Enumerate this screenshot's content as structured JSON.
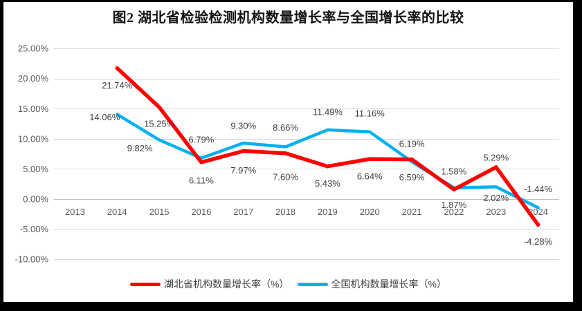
{
  "colors": {
    "frame": "#000000",
    "canvas_background": "#FFFFFF",
    "grid": "#D9D9D9",
    "zero_line": "#BFBFBF",
    "axis_text": "#595959",
    "data_label_text": "#3F3F3F",
    "title_text": "#141414",
    "hubei_red": "#FF0000",
    "national_blue": "#00B0F0"
  },
  "chart_data": {
    "type": "line",
    "title": "图2 湖北省检验检测机构数量增长率与全国增长率的比较",
    "xlabel": "",
    "ylabel": "",
    "ylim": [
      -10,
      25
    ],
    "ytick_step": 5,
    "grid": true,
    "legend_position": "bottom",
    "categories": [
      "2013",
      "2014",
      "2015",
      "2016",
      "2017",
      "2018",
      "2019",
      "2020",
      "2021",
      "2022",
      "2023",
      "2024"
    ],
    "yticks": [
      {
        "label": "25.00%",
        "value": 25
      },
      {
        "label": "20.00%",
        "value": 20
      },
      {
        "label": "15.00%",
        "value": 15
      },
      {
        "label": "10.00%",
        "value": 10
      },
      {
        "label": "5.00%",
        "value": 5
      },
      {
        "label": "0.00%",
        "value": 0
      },
      {
        "label": "-5.00%",
        "value": -5
      },
      {
        "label": "-10.00%",
        "value": -10
      }
    ],
    "series": [
      {
        "name": "湖北省机构数量增长率（%）",
        "color": "#FF0000",
        "values": [
          null,
          21.74,
          15.25,
          6.11,
          7.97,
          7.6,
          5.43,
          6.64,
          6.59,
          1.58,
          5.29,
          -4.28
        ],
        "data_labels": [
          "",
          "21.74%",
          "15.25%",
          "6.11%",
          "7.97%",
          "7.60%",
          "5.43%",
          "6.64%",
          "6.59%",
          "1.58%",
          "5.29%",
          "-4.28%"
        ],
        "label_offsets": [
          [
            0,
            0
          ],
          [
            0,
            25
          ],
          [
            0,
            24
          ],
          [
            0,
            26
          ],
          [
            0,
            28
          ],
          [
            0,
            34
          ],
          [
            0,
            25
          ],
          [
            0,
            25
          ],
          [
            0,
            26
          ],
          [
            0,
            -26
          ],
          [
            0,
            -14
          ],
          [
            0,
            24
          ]
        ]
      },
      {
        "name": "全国机构数量增长率（%）",
        "color": "#00B0F0",
        "values": [
          null,
          14.06,
          9.82,
          6.79,
          9.3,
          8.66,
          11.49,
          11.16,
          6.19,
          1.87,
          2.02,
          -1.44
        ],
        "data_labels": [
          "",
          "14.06%",
          "9.82%",
          "6.79%",
          "9.30%",
          "8.66%",
          "11.49%",
          "11.16%",
          "6.19%",
          "1.87%",
          "2.02%",
          "-1.44%"
        ],
        "label_offsets": [
          [
            0,
            0
          ],
          [
            -18,
            4
          ],
          [
            -28,
            12
          ],
          [
            0,
            -27
          ],
          [
            0,
            -25
          ],
          [
            0,
            -28
          ],
          [
            0,
            -26
          ],
          [
            0,
            -27
          ],
          [
            0,
            -26
          ],
          [
            0,
            25
          ],
          [
            0,
            16
          ],
          [
            0,
            -27
          ]
        ]
      }
    ]
  }
}
